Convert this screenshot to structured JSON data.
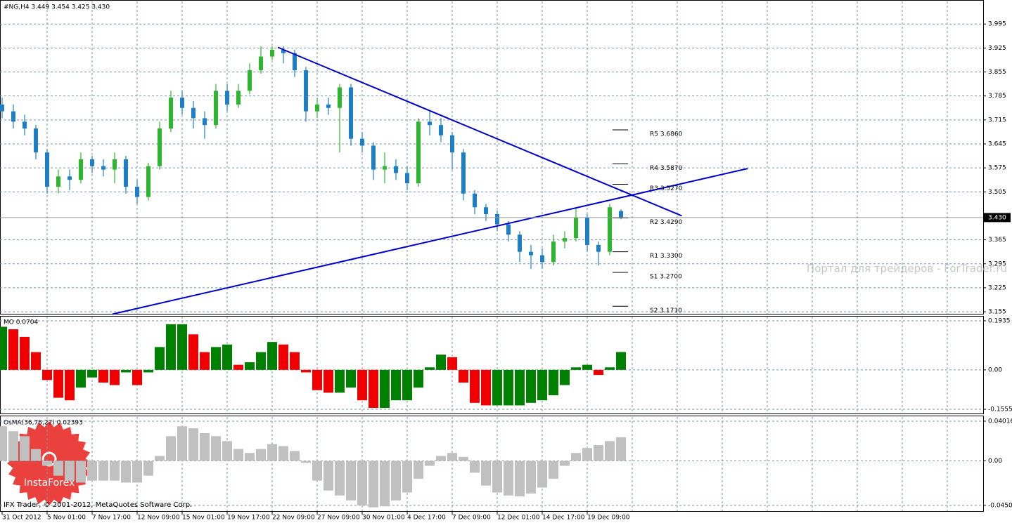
{
  "chart_data": [
    {
      "type": "candlestick",
      "title": "#NG,H4  3.449 3.454 3.425 3.430",
      "categories": [
        "31 Oct 2012",
        null,
        null,
        null,
        "5 Nov 01:00",
        null,
        null,
        null,
        "7 Nov 17:00",
        null,
        null,
        null,
        "12 Nov 09:00",
        null,
        null,
        null,
        "15 Nov 01:00",
        null,
        null,
        null,
        "19 Nov 17:00",
        null,
        null,
        null,
        "22 Nov 09:00",
        null,
        null,
        null,
        "27 Nov 09:00",
        null,
        null,
        null,
        "30 Nov 01:00",
        null,
        null,
        null,
        "4 Dec 17:00",
        null,
        null,
        null,
        "7 Dec 09:00",
        null,
        null,
        null,
        "12 Dec 01:00",
        null,
        null,
        null,
        "14 Dec 17:00",
        null,
        null,
        null,
        "19 Dec 09:00",
        null,
        null,
        null
      ],
      "open": [
        3.76,
        3.74,
        3.71,
        3.69,
        3.62,
        3.52,
        3.55,
        3.54,
        3.6,
        3.58,
        3.57,
        3.6,
        3.52,
        3.49,
        3.58,
        3.69,
        3.78,
        3.75,
        3.72,
        3.7,
        3.8,
        3.76,
        3.8,
        3.86,
        3.9,
        3.92,
        3.91,
        3.86,
        3.74,
        3.76,
        3.75,
        3.81,
        3.66,
        3.64,
        3.57,
        3.58,
        3.56,
        3.53,
        3.71,
        3.7,
        3.67,
        3.62,
        3.5,
        3.46,
        3.44,
        3.41,
        3.38,
        3.33,
        3.32,
        3.3,
        3.36,
        3.37,
        3.43,
        3.35,
        3.33,
        3.449
      ],
      "high": [
        3.78,
        3.76,
        3.73,
        3.7,
        3.63,
        3.57,
        3.57,
        3.62,
        3.61,
        3.6,
        3.62,
        3.61,
        3.54,
        3.59,
        3.71,
        3.8,
        3.8,
        3.77,
        3.74,
        3.82,
        3.82,
        3.82,
        3.88,
        3.93,
        3.93,
        3.93,
        3.92,
        3.87,
        3.78,
        3.78,
        3.82,
        3.82,
        3.68,
        3.65,
        3.62,
        3.6,
        3.58,
        3.72,
        3.74,
        3.72,
        3.68,
        3.63,
        3.51,
        3.47,
        3.45,
        3.42,
        3.39,
        3.35,
        3.34,
        3.38,
        3.39,
        3.46,
        3.44,
        3.36,
        3.47,
        3.454
      ],
      "low": [
        3.72,
        3.69,
        3.67,
        3.6,
        3.5,
        3.5,
        3.51,
        3.53,
        3.56,
        3.55,
        3.53,
        3.5,
        3.47,
        3.48,
        3.57,
        3.68,
        3.73,
        3.69,
        3.66,
        3.69,
        3.74,
        3.75,
        3.79,
        3.85,
        3.89,
        3.88,
        3.84,
        3.71,
        3.72,
        3.73,
        3.62,
        3.64,
        3.62,
        3.54,
        3.53,
        3.54,
        3.51,
        3.52,
        3.67,
        3.65,
        3.57,
        3.48,
        3.44,
        3.42,
        3.39,
        3.36,
        3.3,
        3.28,
        3.28,
        3.29,
        3.34,
        3.36,
        3.33,
        3.29,
        3.32,
        3.425
      ],
      "close": [
        3.74,
        3.71,
        3.69,
        3.62,
        3.52,
        3.55,
        3.54,
        3.6,
        3.58,
        3.57,
        3.6,
        3.52,
        3.49,
        3.58,
        3.69,
        3.78,
        3.75,
        3.72,
        3.7,
        3.8,
        3.76,
        3.8,
        3.86,
        3.9,
        3.92,
        3.91,
        3.86,
        3.74,
        3.76,
        3.75,
        3.81,
        3.66,
        3.64,
        3.57,
        3.58,
        3.56,
        3.53,
        3.71,
        3.7,
        3.67,
        3.62,
        3.5,
        3.46,
        3.44,
        3.41,
        3.38,
        3.33,
        3.32,
        3.3,
        3.36,
        3.37,
        3.43,
        3.35,
        3.33,
        3.46,
        3.43
      ],
      "up_color": "#2fb52f",
      "down_color": "#1f7fc4",
      "ylim": [
        3.149,
        4.061
      ],
      "yticks": [
        3.995,
        3.925,
        3.855,
        3.785,
        3.715,
        3.645,
        3.575,
        3.505,
        3.365,
        3.295,
        3.225,
        3.155
      ],
      "last_price": {
        "value": 3.43,
        "label": "3.430"
      },
      "grid": true,
      "trendlines": [
        {
          "x": [
            24.5,
            60.4
          ],
          "y": [
            3.927,
            3.435
          ],
          "color": "#0000cc"
        },
        {
          "x": [
            9.8,
            66.25
          ],
          "y": [
            3.148,
            3.573
          ],
          "color": "#0000cc"
        }
      ],
      "levels": [
        {
          "label": "R5 3.6860",
          "value": 3.686
        },
        {
          "label": "R4 3.5870",
          "value": 3.587
        },
        {
          "label": "R3 3.5270",
          "value": 3.527
        },
        {
          "label": "R2 3.4290",
          "value": 3.429
        },
        {
          "label": "R1 3.3300",
          "value": 3.33
        },
        {
          "label": "S1 3.2700",
          "value": 3.27
        },
        {
          "label": "S2 3.1710",
          "value": 3.171
        }
      ]
    },
    {
      "type": "histogram",
      "title": "MO 0.0704",
      "up_color": "#008000",
      "down_color": "#ee0000",
      "values": [
        0.17,
        0.16,
        0.13,
        0.07,
        -0.04,
        -0.11,
        -0.12,
        -0.07,
        -0.03,
        -0.05,
        -0.06,
        -0.01,
        -0.06,
        -0.01,
        0.09,
        0.18,
        0.18,
        0.14,
        0.07,
        0.09,
        0.1,
        0.02,
        0.03,
        0.07,
        0.11,
        0.1,
        0.07,
        -0.01,
        -0.08,
        -0.09,
        -0.09,
        -0.07,
        -0.12,
        -0.15,
        -0.15,
        -0.12,
        -0.12,
        -0.07,
        0.01,
        0.06,
        0.05,
        -0.05,
        -0.13,
        -0.14,
        -0.14,
        -0.14,
        -0.14,
        -0.13,
        -0.12,
        -0.1,
        -0.06,
        0.01,
        0.02,
        -0.02,
        0.01,
        0.0704
      ],
      "ylim": [
        -0.172,
        0.21
      ],
      "yticks": [
        0.1935,
        {
          "value": 0,
          "label": "0.00"
        },
        -0.1555
      ],
      "grid": true
    },
    {
      "type": "bar",
      "title": "OsMA(36,78,27) 0.02393",
      "color": "#c0c0c0",
      "values": [
        0.035,
        0.03,
        0.025,
        0.012,
        -0.005,
        -0.015,
        -0.02,
        -0.022,
        -0.02,
        -0.02,
        -0.02,
        -0.022,
        -0.022,
        -0.015,
        0.005,
        0.025,
        0.035,
        0.033,
        0.028,
        0.025,
        0.02,
        0.012,
        0.008,
        0.012,
        0.017,
        0.015,
        0.01,
        -0.002,
        -0.02,
        -0.03,
        -0.035,
        -0.04,
        -0.045,
        -0.047,
        -0.046,
        -0.04,
        -0.032,
        -0.018,
        -0.005,
        0.005,
        0.008,
        0.004,
        -0.012,
        -0.025,
        -0.032,
        -0.035,
        -0.036,
        -0.033,
        -0.027,
        -0.018,
        -0.005,
        0.008,
        0.013,
        0.016,
        0.02,
        0.02393
      ],
      "ylim": [
        -0.0508,
        0.0444
      ],
      "yticks": [
        0.04016,
        {
          "value": 0,
          "label": "0.00"
        },
        -0.04505
      ],
      "grid": true
    }
  ],
  "watermark": "Портал для трейдеров - ForTrader.ru",
  "copyright": "IFX Trader, © 2001-2012, MetaQuotes Software Corp.",
  "logo": "InstaForex"
}
